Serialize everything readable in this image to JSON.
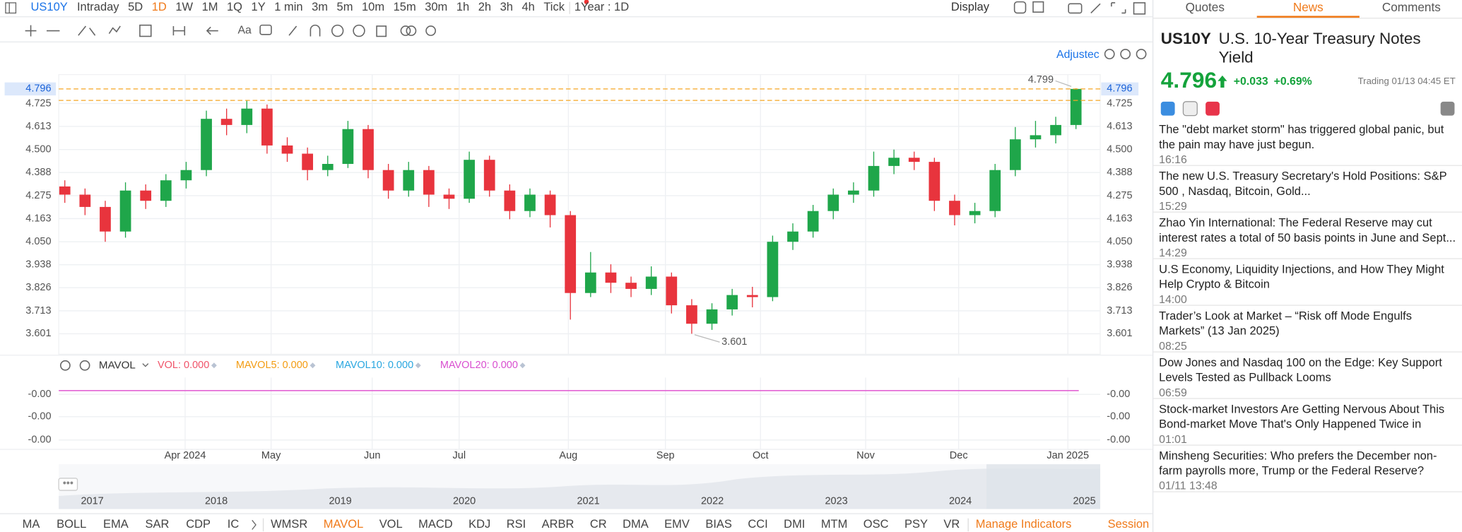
{
  "top_bar": {
    "symbol": "US10Y",
    "periods": [
      "Intraday",
      "5D",
      "1D",
      "1W",
      "1M",
      "1Q",
      "1Y",
      "1 min",
      "3m",
      "5m",
      "10m",
      "15m",
      "30m",
      "1h",
      "2h",
      "3h",
      "4h",
      "Tick"
    ],
    "active_index": 2,
    "range": "1Year : 1D",
    "display": "Display"
  },
  "toolbar": {
    "text_tool": "Aa",
    "adjusted": "Adjustec"
  },
  "chart_data": {
    "type": "candlestick",
    "up_color": "#1fa64a",
    "down_color": "#e8343d",
    "xlim": [
      -0.3,
      51.2
    ],
    "ylim": [
      3.501,
      4.866
    ],
    "yticks": [
      3.601,
      3.713,
      3.826,
      3.938,
      {
        "value": 4.05,
        "label": "4.050"
      },
      4.163,
      4.275,
      4.388,
      {
        "value": 4.5,
        "label": "4.500"
      },
      4.613,
      4.725
    ],
    "xticks": [
      {
        "value": 5.95,
        "label": "Apr 2024"
      },
      {
        "value": 10.2,
        "label": "May"
      },
      {
        "value": 15.2,
        "label": "Jun"
      },
      {
        "value": 19.5,
        "label": "Jul"
      },
      {
        "value": 24.9,
        "label": "Aug"
      },
      {
        "value": 29.7,
        "label": "Sep"
      },
      {
        "value": 34.4,
        "label": "Oct"
      },
      {
        "value": 39.6,
        "label": "Nov"
      },
      {
        "value": 44.2,
        "label": "Dec"
      },
      {
        "value": 49.6,
        "label": "Jan 2025"
      }
    ],
    "grid": true,
    "open": [
      4.32,
      4.28,
      4.22,
      4.1,
      4.3,
      4.25,
      4.35,
      4.4,
      4.65,
      4.62,
      4.7,
      4.52,
      4.48,
      4.4,
      4.43,
      4.6,
      4.4,
      4.3,
      4.4,
      4.28,
      4.26,
      4.45,
      4.3,
      4.2,
      4.28,
      4.18,
      3.8,
      3.9,
      3.85,
      3.82,
      3.88,
      3.74,
      3.65,
      3.72,
      3.79,
      3.78,
      4.05,
      4.1,
      4.2,
      4.28,
      4.3,
      4.42,
      4.46,
      4.44,
      4.25,
      4.18,
      4.2,
      4.4,
      4.55,
      4.57,
      4.62
    ],
    "high": [
      4.35,
      4.31,
      4.25,
      4.34,
      4.33,
      4.38,
      4.44,
      4.69,
      4.7,
      4.74,
      4.72,
      4.56,
      4.51,
      4.47,
      4.64,
      4.62,
      4.43,
      4.44,
      4.42,
      4.31,
      4.49,
      4.47,
      4.33,
      4.31,
      4.3,
      4.2,
      4.0,
      3.94,
      3.88,
      3.93,
      3.9,
      3.77,
      3.75,
      3.82,
      3.83,
      4.08,
      4.14,
      4.23,
      4.31,
      4.34,
      4.49,
      4.5,
      4.49,
      4.46,
      4.28,
      4.24,
      4.43,
      4.61,
      4.64,
      4.66,
      4.799
    ],
    "low": [
      4.24,
      4.18,
      4.05,
      4.07,
      4.21,
      4.22,
      4.31,
      4.37,
      4.57,
      4.58,
      4.48,
      4.44,
      4.35,
      4.37,
      4.41,
      4.36,
      4.26,
      4.27,
      4.22,
      4.21,
      4.24,
      4.27,
      4.16,
      4.17,
      4.12,
      3.67,
      3.78,
      3.8,
      3.78,
      3.79,
      3.7,
      3.601,
      3.62,
      3.69,
      3.73,
      3.76,
      4.01,
      4.07,
      4.16,
      4.24,
      4.27,
      4.38,
      4.4,
      4.2,
      4.13,
      4.14,
      4.17,
      4.37,
      4.51,
      4.53,
      4.6
    ],
    "close": [
      4.28,
      4.22,
      4.1,
      4.3,
      4.25,
      4.35,
      4.4,
      4.65,
      4.62,
      4.7,
      4.52,
      4.48,
      4.4,
      4.43,
      4.6,
      4.4,
      4.3,
      4.4,
      4.28,
      4.26,
      4.45,
      4.3,
      4.2,
      4.28,
      4.18,
      3.8,
      3.9,
      3.85,
      3.82,
      3.88,
      3.74,
      3.65,
      3.72,
      3.79,
      3.78,
      4.05,
      4.1,
      4.2,
      4.28,
      4.3,
      4.42,
      4.46,
      4.44,
      4.25,
      4.18,
      4.2,
      4.4,
      4.55,
      4.57,
      4.62,
      4.796
    ]
  },
  "indicator": {
    "name": "MAVOL",
    "items": [
      {
        "label": "VOL:",
        "value": "0.000",
        "color": "#f0546a"
      },
      {
        "label": "MAVOL5:",
        "value": "0.000",
        "color": "#f39c12"
      },
      {
        "label": "MAVOL10:",
        "value": "0.000",
        "color": "#2aa7e0"
      },
      {
        "label": "MAVOL20:",
        "value": "0.000",
        "color": "#d94fd0"
      }
    ],
    "yticks": [
      "-0.00",
      "-0.00",
      "-0.00"
    ],
    "line_color": "#e056d0"
  },
  "navigator": {
    "years": [
      "2017",
      "2018",
      "2019",
      "2020",
      "2021",
      "2022",
      "2023",
      "2024",
      "2025"
    ]
  },
  "bottom_bar": {
    "group1": [
      "MA",
      "BOLL",
      "EMA",
      "SAR",
      "CDP",
      "IC"
    ],
    "group2": [
      "WMSR",
      "MAVOL",
      "VOL",
      "MACD",
      "KDJ",
      "RSI",
      "ARBR",
      "CR",
      "DMA",
      "EMV",
      "BIAS",
      "CCI",
      "DMI",
      "MTM",
      "OSC",
      "PSY",
      "VR"
    ],
    "active_index": 1,
    "manage": "Manage Indicators",
    "session": "Session"
  },
  "side_panel": {
    "tabs": [
      "Quotes",
      "News",
      "Comments"
    ],
    "active_tab": 1,
    "symbol": "US10Y",
    "name": "U.S. 10-Year Treasury Notes Yield",
    "change": "+0.033",
    "change_pct": "+0.69%",
    "status": "Trading 01/13 04:45 ET",
    "news": [
      {
        "title": "The \"debt market storm\" has triggered global panic, but the pain may have just begun.",
        "time": "16:16"
      },
      {
        "title": "The new U.S. Treasury Secretary's Hold Positions: S&P 500 , Nasdaq, Bitcoin, Gold...",
        "time": "15:29"
      },
      {
        "title": "Zhao Yin International: The Federal Reserve may cut interest rates a total of 50 basis points in June and Sept...",
        "time": "14:29"
      },
      {
        "title": "U.S Economy, Liquidity Injections, and How They Might Help Crypto & Bitcoin",
        "time": "14:00"
      },
      {
        "title": "Trader’s Look at Market – “Risk off Mode Engulfs Markets” (13 Jan 2025)",
        "time": "08:25"
      },
      {
        "title": "Dow Jones and Nasdaq 100 on the Edge: Key Support Levels Tested as Pullback Looms",
        "time": "06:59"
      },
      {
        "title": "Stock-market Investors Are Getting Nervous About This Bond-market Move That's Only Happened Twice in Over...",
        "time": "01:01"
      },
      {
        "title": "Minsheng Securities: Who prefers the December non-farm payrolls more, Trump or the Federal Reserve?",
        "time": "01/11 13:48"
      }
    ]
  }
}
